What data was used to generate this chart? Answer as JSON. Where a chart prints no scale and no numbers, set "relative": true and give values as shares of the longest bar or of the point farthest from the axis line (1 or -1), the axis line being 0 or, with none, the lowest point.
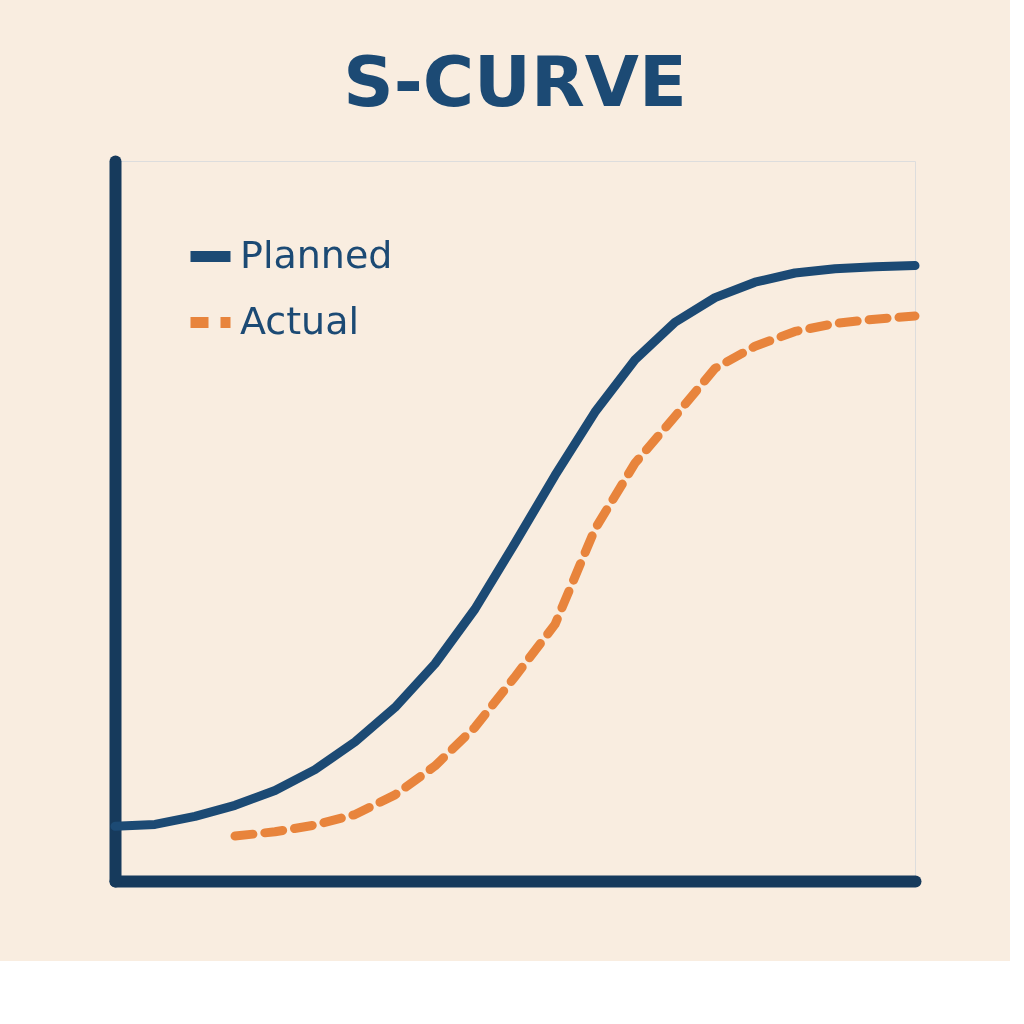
{
  "chart_data": {
    "type": "line",
    "title": "S-CURVE",
    "relative": true,
    "grid": false,
    "legend": "top left",
    "tick_labels": false,
    "categories": [
      null,
      null,
      null,
      null,
      null,
      null,
      null,
      null,
      null,
      null,
      null,
      null,
      null,
      null,
      null,
      null,
      null,
      null,
      null,
      null,
      null
    ],
    "series": [
      {
        "name": "Planned",
        "color": "#1c4a74",
        "line_style": "solid",
        "values": [
          0.089,
          0.092,
          0.105,
          0.123,
          0.147,
          0.181,
          0.226,
          0.282,
          0.353,
          0.442,
          0.549,
          0.659,
          0.762,
          0.847,
          0.908,
          0.948,
          0.973,
          0.988,
          0.995,
          0.998,
          1
        ]
      },
      {
        "name": "Actual",
        "color": "#e8843c",
        "line_style": "dashed",
        "values": [
          null,
          null,
          null,
          0.073,
          0.08,
          0.091,
          0.108,
          0.14,
          0.187,
          0.25,
          0.332,
          0.417,
          0.572,
          0.679,
          0.755,
          0.833,
          0.869,
          0.893,
          0.906,
          0.913,
          0.918
        ]
      }
    ]
  }
}
